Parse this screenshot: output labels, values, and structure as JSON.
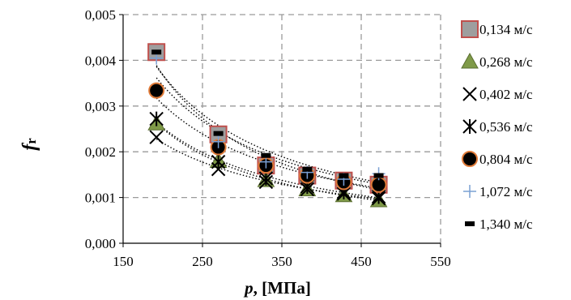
{
  "chart_data": {
    "type": "scatter",
    "ylabel": {
      "main": "f",
      "sub": "r"
    },
    "xlabel": {
      "italic": "p",
      "rest": ", [МПа]"
    },
    "xlim": [
      150,
      550
    ],
    "ylim": [
      0,
      0.005
    ],
    "xticks": [
      "150",
      "250",
      "350",
      "450",
      "550"
    ],
    "yticks": [
      "0,000",
      "0,001",
      "0,002",
      "0,003",
      "0,004",
      "0,005"
    ],
    "grid": true,
    "legend_position": "right",
    "trendlines": "power, dotted",
    "series": [
      {
        "name": "0,134 м/с",
        "marker": "square",
        "color": "#9e9e9e",
        "edge": "#c0504d",
        "x": [
          192,
          270,
          330,
          382,
          428,
          472
        ],
        "y": [
          0.00418,
          0.00238,
          0.0017,
          0.00148,
          0.00137,
          0.00128
        ]
      },
      {
        "name": "0,268 м/с",
        "marker": "triangle",
        "color": "#7f9a48",
        "edge": "#5a6e30",
        "x": [
          192,
          270,
          330,
          382,
          428,
          472
        ],
        "y": [
          0.00262,
          0.0018,
          0.00138,
          0.00118,
          0.00105,
          0.00094
        ]
      },
      {
        "name": "0,402 м/с",
        "marker": "x",
        "color": "#000000",
        "edge": "#000000",
        "x": [
          192,
          270,
          330,
          382,
          428,
          472
        ],
        "y": [
          0.00232,
          0.00162,
          0.00134,
          0.00118,
          0.00108,
          0.00098
        ]
      },
      {
        "name": "0,536 м/с",
        "marker": "asterisk",
        "color": "#000000",
        "edge": "#000000",
        "x": [
          192,
          270,
          330,
          382,
          428,
          472
        ],
        "y": [
          0.00272,
          0.00178,
          0.00142,
          0.00124,
          0.00112,
          0.00102
        ]
      },
      {
        "name": "0,804 м/с",
        "marker": "circle",
        "color": "#000000",
        "edge": "#e07b39",
        "x": [
          192,
          270,
          330,
          382,
          428,
          472
        ],
        "y": [
          0.00334,
          0.0021,
          0.0017,
          0.00148,
          0.00134,
          0.00128
        ]
      },
      {
        "name": "1,072 м/с",
        "marker": "plus",
        "color": "#7aa0d4",
        "edge": "#7aa0d4",
        "x": [
          192,
          270,
          330,
          382,
          428,
          472
        ],
        "y": [
          0.00405,
          0.00222,
          0.00178,
          0.00155,
          0.0014,
          0.00152
        ]
      },
      {
        "name": "1,340 м/с",
        "marker": "dash",
        "color": "#000000",
        "edge": "#000000",
        "x": [
          192,
          270,
          330,
          382,
          428,
          472
        ],
        "y": [
          0.00418,
          0.0024,
          0.00192,
          0.00162,
          0.00148,
          0.00148
        ]
      }
    ]
  }
}
